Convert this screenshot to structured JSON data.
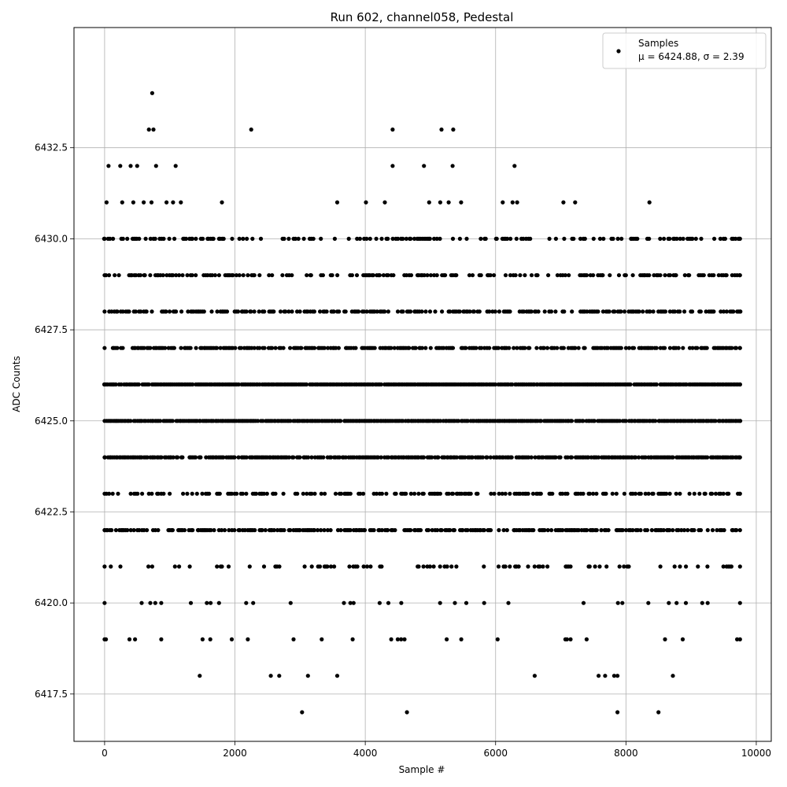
{
  "chart_data": {
    "type": "scatter",
    "title": "Run 602, channel058, Pedestal",
    "xlabel": "Sample #",
    "ylabel": "ADC Counts",
    "xlim": [
      -470,
      10230
    ],
    "ylim": [
      6416.2,
      6435.8
    ],
    "xticks": [
      0,
      2000,
      4000,
      6000,
      8000,
      10000
    ],
    "xtick_labels": [
      "0",
      "2000",
      "4000",
      "6000",
      "8000",
      "10000"
    ],
    "yticks": [
      6417.5,
      6420.0,
      6422.5,
      6425.0,
      6427.5,
      6430.0,
      6432.5
    ],
    "ytick_labels": [
      "6417.5",
      "6420.0",
      "6422.5",
      "6425.0",
      "6427.5",
      "6430.0",
      "6432.5"
    ],
    "grid": true,
    "marker_color": "#000000",
    "legend": {
      "placement": "top-right",
      "entries": [
        {
          "series": "Samples",
          "label": "Samples",
          "stats": "μ = 6424.88, σ = 2.39"
        }
      ]
    },
    "series": [
      {
        "name": "Samples",
        "mean": 6424.88,
        "sigma": 2.39,
        "x_range": [
          0,
          9750
        ],
        "approx_sample_step": 25,
        "dense_levels": [
          [
            6419,
            0.05
          ],
          [
            6420,
            0.07
          ],
          [
            6421,
            0.18
          ],
          [
            6422,
            0.62
          ],
          [
            6423,
            0.45
          ],
          [
            6424,
            0.85
          ],
          [
            6425,
            0.95
          ],
          [
            6426,
            0.97
          ],
          [
            6427,
            0.65
          ],
          [
            6428,
            0.58
          ],
          [
            6429,
            0.45
          ],
          [
            6430,
            0.35
          ]
        ],
        "outliers": [
          [
            730,
            6434
          ],
          [
            680,
            6433
          ],
          [
            750,
            6433
          ],
          [
            2250,
            6433
          ],
          [
            4420,
            6433
          ],
          [
            5170,
            6433
          ],
          [
            5350,
            6433
          ],
          [
            60,
            6432
          ],
          [
            240,
            6432
          ],
          [
            400,
            6432
          ],
          [
            500,
            6432
          ],
          [
            790,
            6432
          ],
          [
            1090,
            6432
          ],
          [
            4420,
            6432
          ],
          [
            4900,
            6432
          ],
          [
            5340,
            6432
          ],
          [
            6290,
            6432
          ],
          [
            30,
            6431
          ],
          [
            270,
            6431
          ],
          [
            440,
            6431
          ],
          [
            600,
            6431
          ],
          [
            720,
            6431
          ],
          [
            950,
            6431
          ],
          [
            1050,
            6431
          ],
          [
            1170,
            6431
          ],
          [
            1800,
            6431
          ],
          [
            3570,
            6431
          ],
          [
            4010,
            6431
          ],
          [
            4300,
            6431
          ],
          [
            4980,
            6431
          ],
          [
            5150,
            6431
          ],
          [
            5280,
            6431
          ],
          [
            5470,
            6431
          ],
          [
            6110,
            6431
          ],
          [
            6260,
            6431
          ],
          [
            6330,
            6431
          ],
          [
            7040,
            6431
          ],
          [
            7220,
            6431
          ],
          [
            8360,
            6431
          ],
          [
            1460,
            6418
          ],
          [
            2550,
            6418
          ],
          [
            2680,
            6418
          ],
          [
            3120,
            6418
          ],
          [
            3570,
            6418
          ],
          [
            6600,
            6418
          ],
          [
            7580,
            6418
          ],
          [
            7680,
            6418
          ],
          [
            7820,
            6418
          ],
          [
            7870,
            6418
          ],
          [
            8720,
            6418
          ],
          [
            3030,
            6417
          ],
          [
            4640,
            6417
          ],
          [
            7870,
            6417
          ],
          [
            8500,
            6417
          ]
        ]
      }
    ]
  }
}
